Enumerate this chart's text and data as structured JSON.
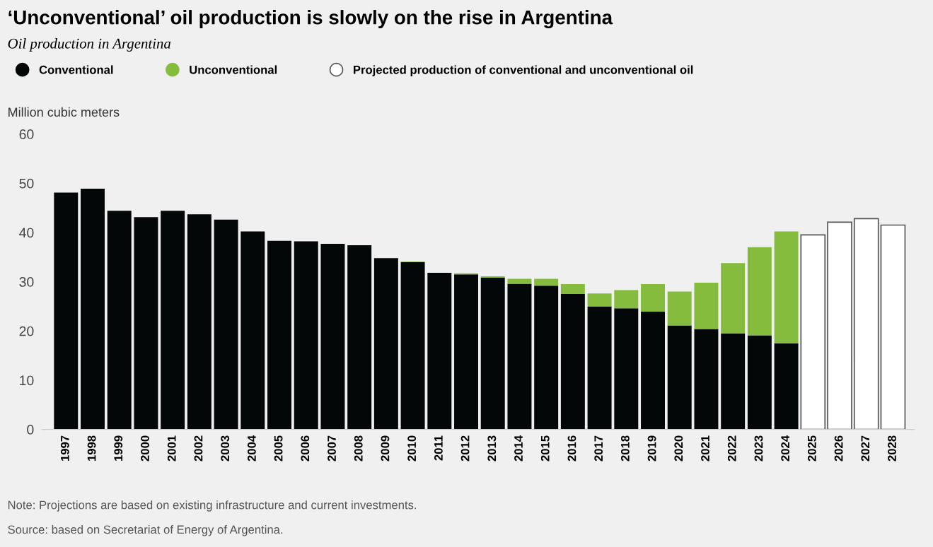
{
  "chart_data": {
    "type": "bar",
    "stacked": true,
    "title": "‘Unconventional’ oil production is slowly on the rise in Argentina",
    "subtitle": "Oil production in Argentina",
    "ylabel": "Million cubic meters",
    "categories": [
      "1997",
      "1998",
      "1999",
      "2000",
      "2001",
      "2002",
      "2003",
      "2004",
      "2005",
      "2006",
      "2007",
      "2008",
      "2009",
      "2010",
      "2011",
      "2012",
      "2013",
      "2014",
      "2015",
      "2016",
      "2017",
      "2018",
      "2019",
      "2020",
      "2021",
      "2022",
      "2023",
      "2024",
      "2025",
      "2026",
      "2027",
      "2028"
    ],
    "series": [
      {
        "name": "Conventional",
        "color": "#030708",
        "values": [
          48.1,
          48.9,
          44.4,
          43.1,
          44.4,
          43.7,
          42.6,
          40.2,
          38.3,
          38.2,
          37.7,
          37.4,
          34.8,
          34.0,
          31.8,
          31.5,
          30.8,
          29.6,
          29.2,
          27.5,
          25.0,
          24.6,
          23.9,
          21.1,
          20.4,
          19.5,
          19.1,
          17.5,
          null,
          null,
          null,
          null
        ]
      },
      {
        "name": "Unconventional",
        "color": "#86bc3e",
        "values": [
          null,
          null,
          null,
          null,
          null,
          null,
          null,
          null,
          null,
          null,
          null,
          null,
          null,
          0.1,
          null,
          0.2,
          0.3,
          1.0,
          1.4,
          2.0,
          2.6,
          3.7,
          5.6,
          6.9,
          9.4,
          14.3,
          17.9,
          22.7,
          null,
          null,
          null,
          null
        ]
      },
      {
        "name": "Projected production of conventional and unconventional oil",
        "color": "#ffffff",
        "values": [
          null,
          null,
          null,
          null,
          null,
          null,
          null,
          null,
          null,
          null,
          null,
          null,
          null,
          null,
          null,
          null,
          null,
          null,
          null,
          null,
          null,
          null,
          null,
          null,
          null,
          null,
          null,
          null,
          39.5,
          42.1,
          42.8,
          41.5
        ]
      }
    ],
    "ylim": [
      0,
      60
    ],
    "yticks": [
      0,
      10,
      20,
      30,
      40,
      50,
      60
    ],
    "grid": false,
    "legend": "top left",
    "annotations": [
      "Note: Projections are based on existing infrastructure and current investments.",
      "Source: based on Secretariat of Energy of Argentina."
    ]
  }
}
